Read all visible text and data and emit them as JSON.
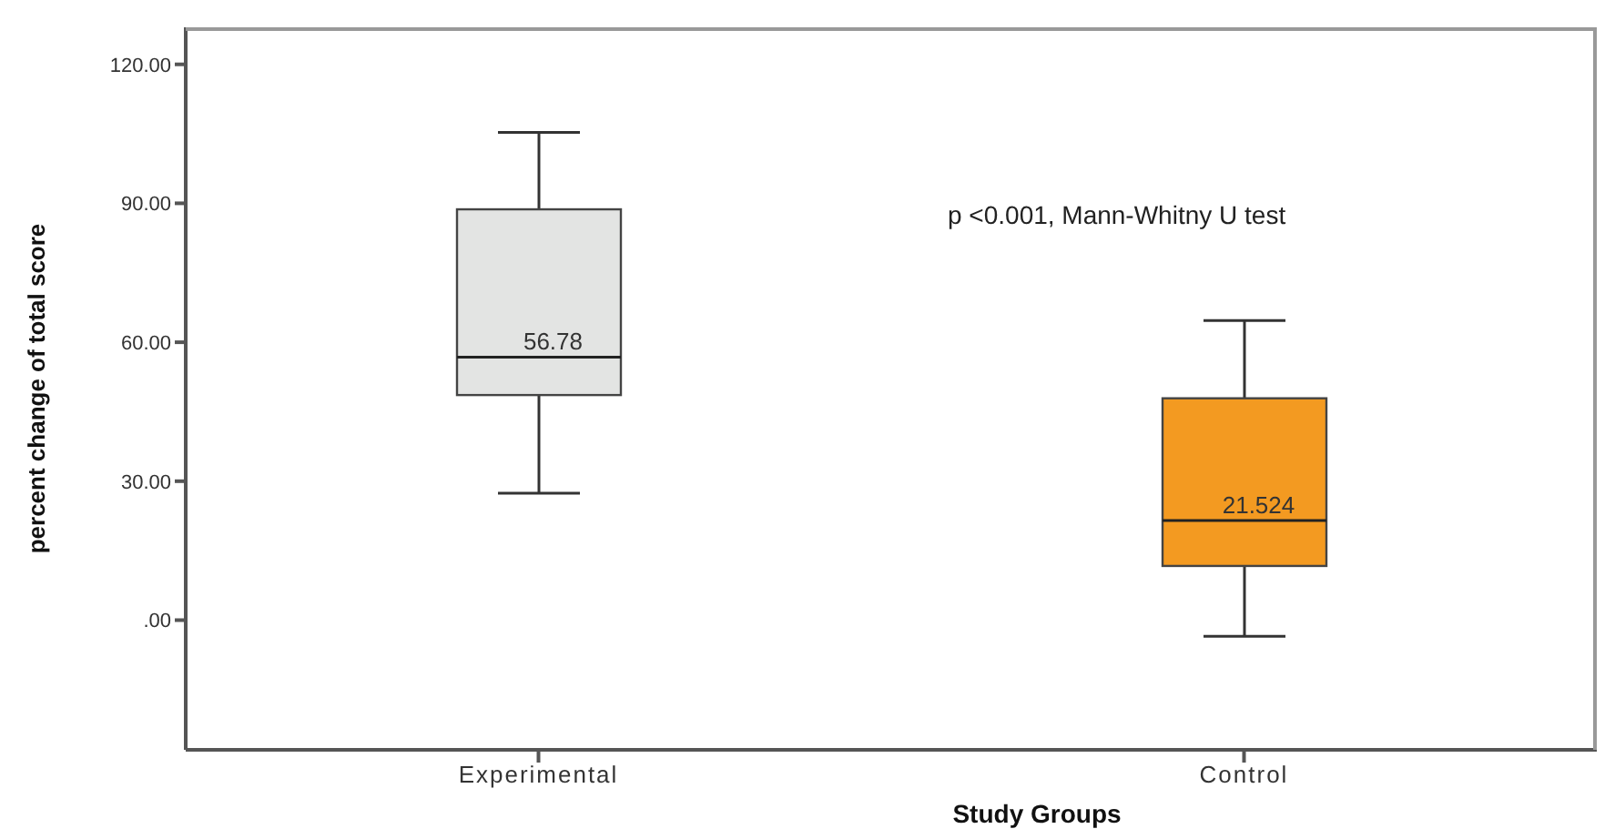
{
  "chart_data": {
    "type": "box",
    "xlabel": "Study Groups",
    "ylabel": "percent change of total score",
    "categories": [
      "Experimental",
      "Control"
    ],
    "boxes": [
      {
        "low": 27.4,
        "q1": 48.6,
        "median": 56.78,
        "q3": 88.7,
        "high": 105.3
      },
      {
        "low": -3.5,
        "q1": 11.7,
        "median": 21.524,
        "q3": 47.9,
        "high": 64.7
      }
    ],
    "colors": [
      "#e3e4e3",
      "#f39a21"
    ],
    "ylim": [
      -28,
      128
    ],
    "yticks": [
      {
        "value": 0,
        "label": ".00"
      },
      {
        "value": 30,
        "label": "30.00"
      },
      {
        "value": 60,
        "label": "60.00"
      },
      {
        "value": 90,
        "label": "90.00"
      },
      {
        "value": 120,
        "label": "120.00"
      }
    ],
    "annotations": [
      "p <0.001, Mann-Whitny U test",
      {
        "text": "56.78",
        "x": "Experimental",
        "y": 56.78
      },
      {
        "text": "21.524",
        "x": "Control",
        "y": 21.524
      }
    ],
    "grid": false,
    "legend": false
  }
}
